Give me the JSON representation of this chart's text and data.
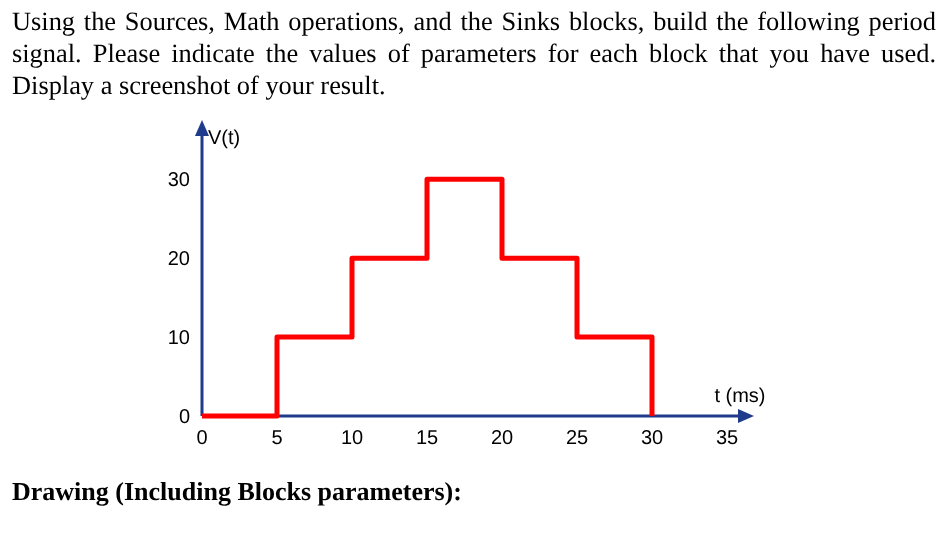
{
  "chart_data": {
    "type": "step",
    "title": "Using the Sources, Math operations,  and the Sinks blocks, build the following period signal. Please indicate the values of parameters for each  block that you have used. Display a screenshot of your result.",
    "xlabel": "t (ms)",
    "ylabel": "V(t)",
    "x": [
      0,
      5,
      10,
      15,
      20,
      25,
      30
    ],
    "series": [
      {
        "color": "#ff0000",
        "values": [
          0,
          10,
          20,
          30,
          20,
          10,
          0
        ]
      }
    ],
    "xlim": [
      0,
      36
    ],
    "ylim": [
      0,
      36
    ],
    "xticks": [
      0,
      5,
      10,
      15,
      20,
      25,
      30,
      35
    ],
    "yticks": [
      0,
      10,
      20,
      30
    ],
    "grid": false,
    "annotations": [
      "Drawing (Including Blocks parameters):"
    ]
  }
}
